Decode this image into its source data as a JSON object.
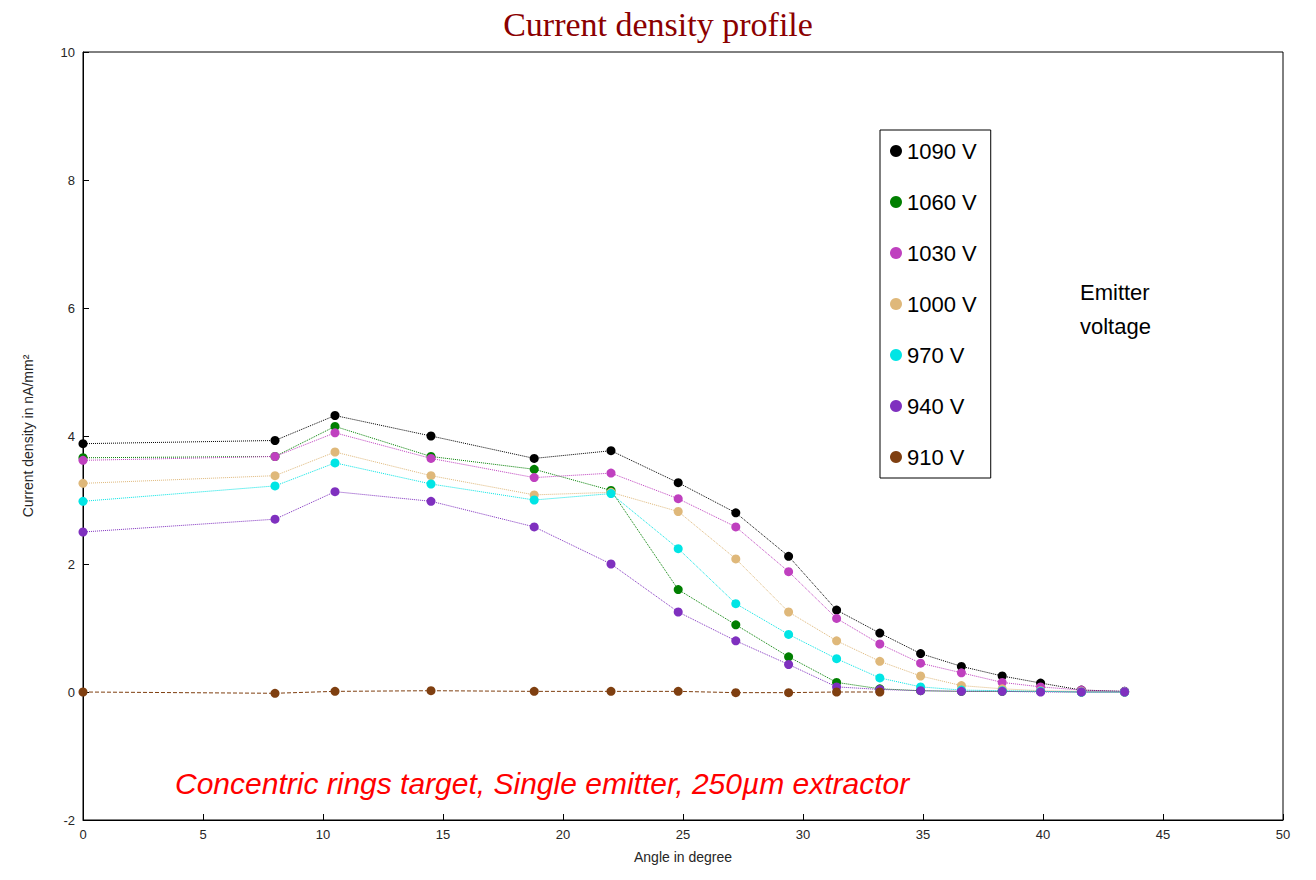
{
  "chart_data": {
    "type": "line",
    "title": "Current density profile",
    "x_label": "Angle in degree",
    "y_label": "Current density in nA/mm²",
    "annotations": [
      "Concentric rings target, Single emitter, 250µm extractor",
      "Emitter voltage"
    ],
    "x": [
      0,
      8.0,
      10.5,
      14.5,
      18.8,
      22.0,
      24.8,
      27.2,
      29.4,
      31.4,
      33.2,
      34.9,
      36.6,
      38.3,
      39.9,
      41.6,
      43.4
    ],
    "series": [
      {
        "name": "1090 V",
        "color": "#000000",
        "line_style": "dotted",
        "values": [
          3.88,
          3.93,
          4.32,
          4.0,
          3.65,
          3.77,
          3.27,
          2.8,
          2.12,
          1.28,
          0.92,
          0.6,
          0.4,
          0.25,
          0.14,
          0.03,
          0.01
        ]
      },
      {
        "name": "1060 V",
        "color": "#007f00",
        "line_style": "dotted",
        "values": [
          3.66,
          3.68,
          4.15,
          3.68,
          3.48,
          3.15,
          1.6,
          1.05,
          0.55,
          0.15,
          0.05,
          0.02,
          0.01,
          0.01,
          0.01,
          0.0,
          0.0
        ]
      },
      {
        "name": "1030 V",
        "color": "#bf40bf",
        "line_style": "dotted",
        "values": [
          3.62,
          3.68,
          4.05,
          3.65,
          3.35,
          3.42,
          3.02,
          2.58,
          1.88,
          1.15,
          0.75,
          0.45,
          0.3,
          0.15,
          0.08,
          0.03,
          0.01
        ]
      },
      {
        "name": "1000 V",
        "color": "#dfb87a",
        "line_style": "dotted",
        "values": [
          3.26,
          3.38,
          3.75,
          3.38,
          3.08,
          3.12,
          2.82,
          2.08,
          1.25,
          0.8,
          0.48,
          0.25,
          0.1,
          0.05,
          0.02,
          0.01,
          0.0
        ]
      },
      {
        "name": "970 V",
        "color": "#00e5e5",
        "line_style": "dotted",
        "values": [
          2.98,
          3.22,
          3.58,
          3.25,
          3.0,
          3.1,
          2.24,
          1.38,
          0.9,
          0.52,
          0.22,
          0.08,
          0.03,
          0.02,
          0.01,
          0.0,
          0.0
        ]
      },
      {
        "name": "940 V",
        "color": "#7f30bf",
        "line_style": "dotted",
        "values": [
          2.5,
          2.7,
          3.13,
          2.98,
          2.58,
          2.0,
          1.25,
          0.8,
          0.43,
          0.08,
          0.04,
          0.02,
          0.01,
          0.01,
          0.0,
          0.0,
          0.0
        ]
      },
      {
        "name": "910 V",
        "color": "#7f3f10",
        "line_style": "dashed",
        "values": [
          0.0,
          -0.02,
          0.01,
          0.02,
          0.01,
          0.01,
          0.01,
          -0.01,
          -0.01,
          0.0,
          0.0,
          null,
          null,
          null,
          null,
          null,
          null
        ]
      }
    ],
    "xlim": [
      0,
      50
    ],
    "ylim": [
      -2,
      10
    ],
    "xticks": [
      0,
      5,
      10,
      15,
      20,
      25,
      30,
      35,
      40,
      45,
      50
    ],
    "yticks": [
      -2,
      0,
      2,
      4,
      6,
      8,
      10
    ],
    "grid": false,
    "legend": "upper right",
    "marker": "circle"
  }
}
